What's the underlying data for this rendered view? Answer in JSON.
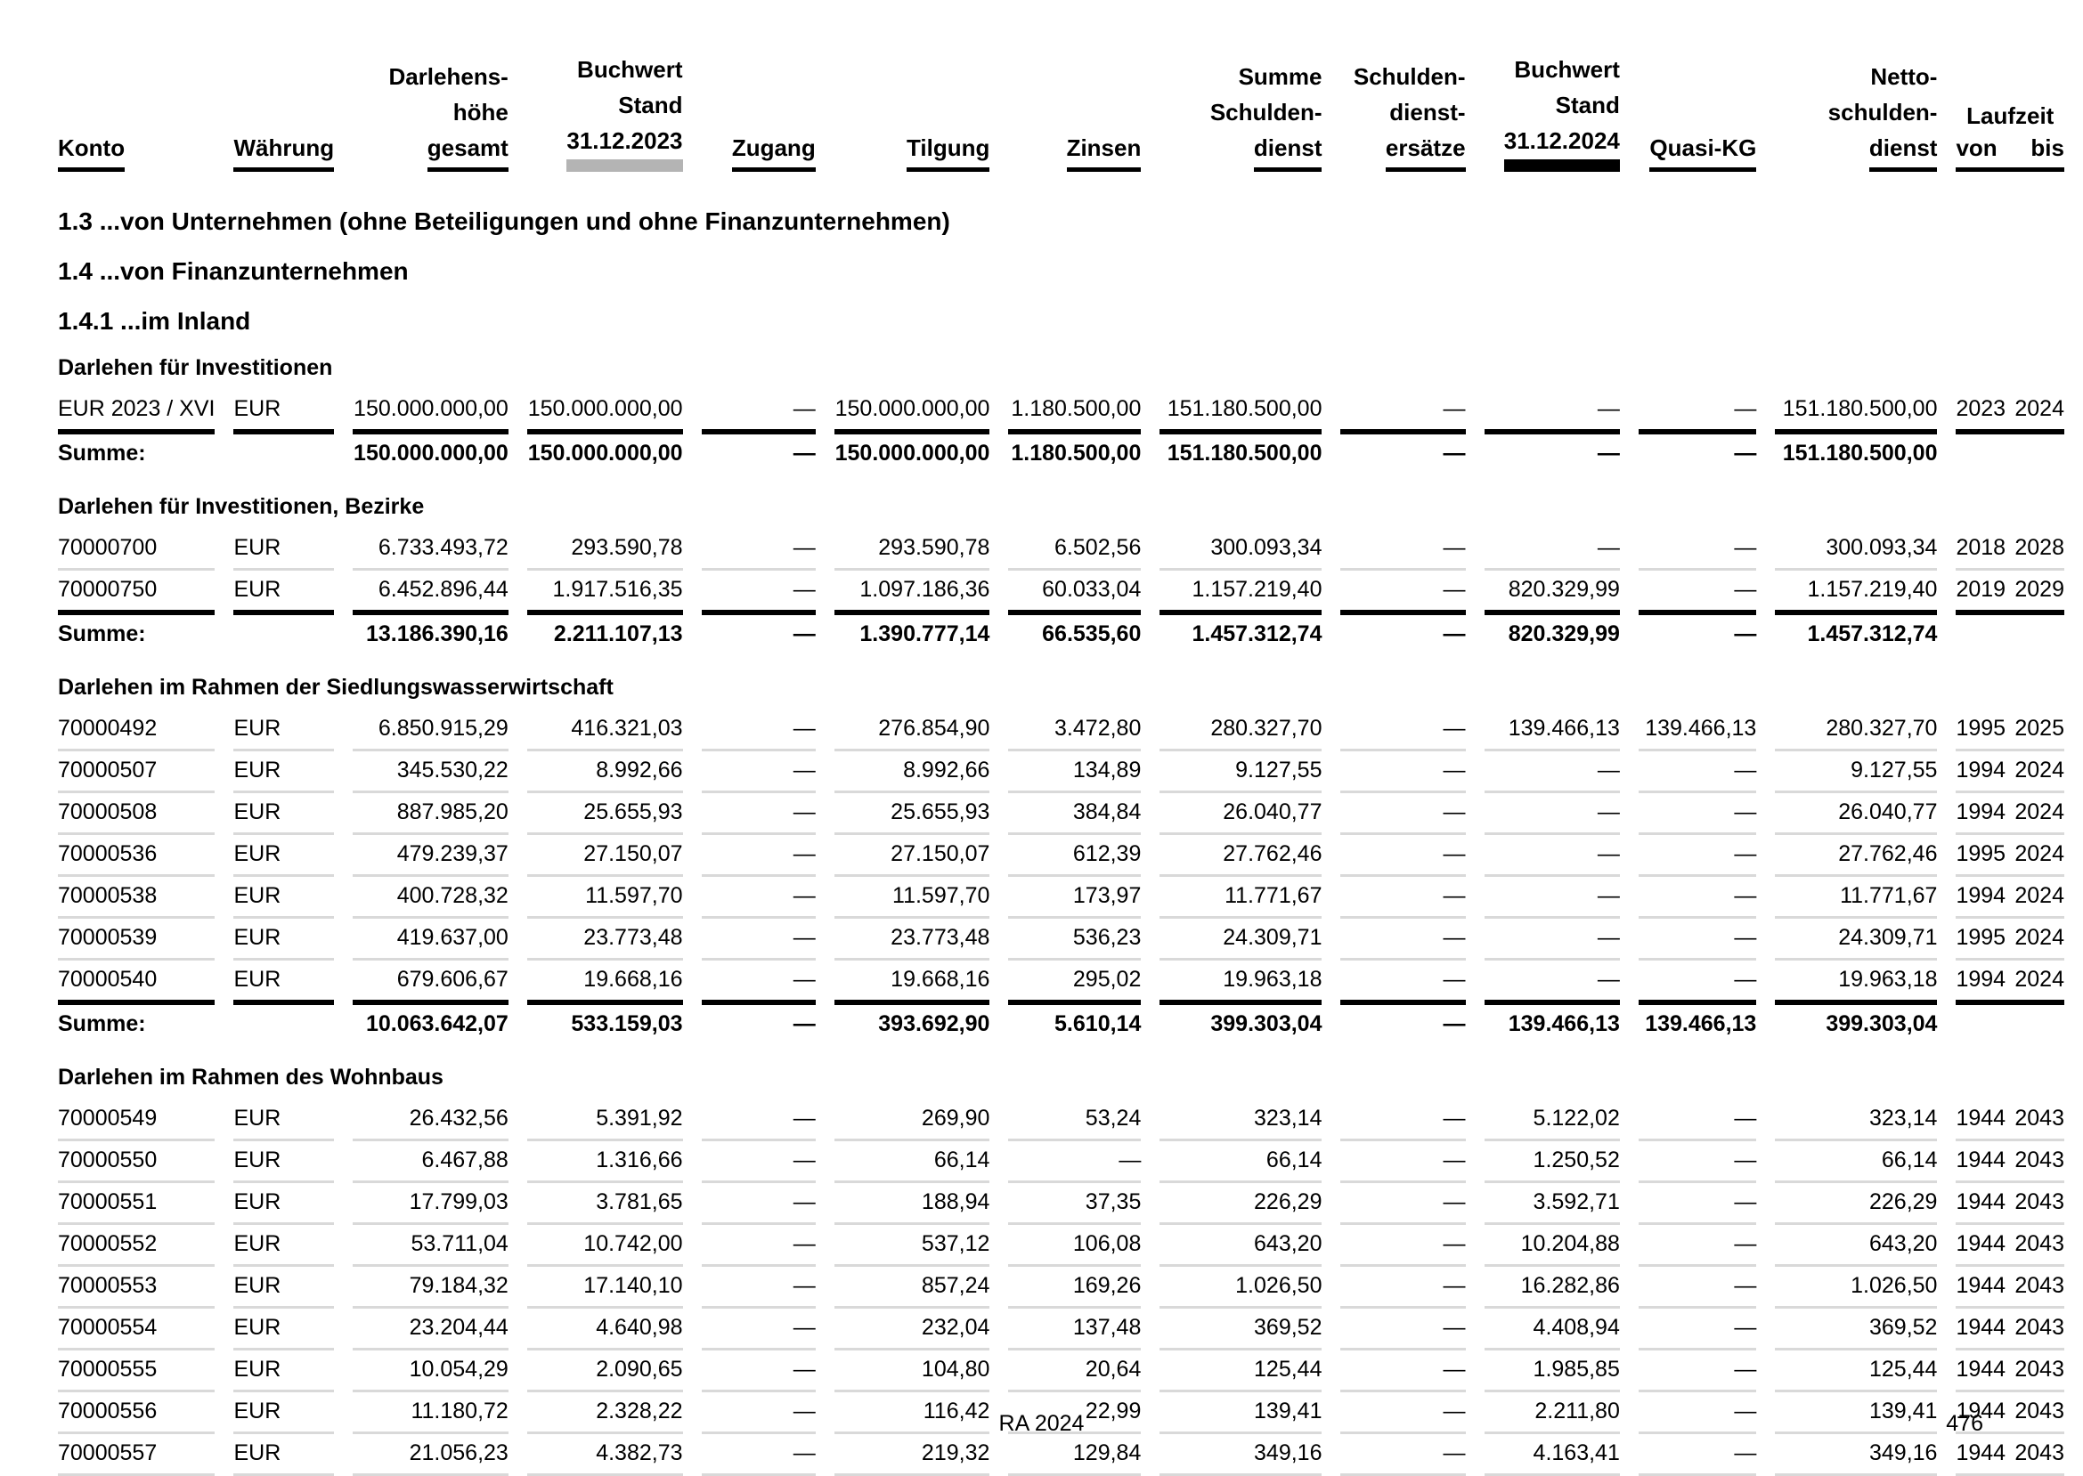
{
  "table": {
    "columns": [
      {
        "id": "konto",
        "label": "Konto",
        "align": "left",
        "underline": "black"
      },
      {
        "id": "waehrung",
        "label": "Währung",
        "align": "left",
        "underline": "black"
      },
      {
        "id": "darlehenshoehe-gesamt",
        "label": "Darlehens-\nhöhe\ngesamt",
        "align": "right",
        "underline": "black"
      },
      {
        "id": "buchwert-stand-2023",
        "label": "Buchwert\nStand\n31.12.2023",
        "align": "right",
        "underline": "gray-bar"
      },
      {
        "id": "zugang",
        "label": "Zugang",
        "align": "right",
        "underline": "black"
      },
      {
        "id": "tilgung",
        "label": "Tilgung",
        "align": "right",
        "underline": "black"
      },
      {
        "id": "zinsen",
        "label": "Zinsen",
        "align": "right",
        "underline": "black"
      },
      {
        "id": "summe-schuldendienst",
        "label": "Summe\nSchulden-\ndienst",
        "align": "right",
        "underline": "black"
      },
      {
        "id": "schuldendienstersaetze",
        "label": "Schulden-\ndienst-\nersätze",
        "align": "right",
        "underline": "black"
      },
      {
        "id": "buchwert-stand-2024",
        "label": "Buchwert\nStand\n31.12.2024",
        "align": "right",
        "underline": "black-bar"
      },
      {
        "id": "quasi-kg",
        "label": "Quasi-KG",
        "align": "right",
        "underline": "black"
      },
      {
        "id": "netto-schuldendienst",
        "label": "Netto-\nschulden-\ndienst",
        "align": "right",
        "underline": "black"
      },
      {
        "id": "laufzeit",
        "label": "Laufzeit",
        "sub": [
          "von",
          "bis"
        ],
        "align": "right",
        "underline": "black"
      }
    ]
  },
  "sections": {
    "headings": [
      "1.3 ...von Unternehmen (ohne Beteiligungen und ohne Finanzunternehmen)",
      "1.4 ...von Finanzunternehmen",
      "1.4.1 ...im Inland"
    ],
    "groups": [
      {
        "title": "Darlehen für Investitionen",
        "rows": [
          [
            "EUR 2023 / XVI",
            "EUR",
            "150.000.000,00",
            "150.000.000,00",
            "—",
            "150.000.000,00",
            "1.180.500,00",
            "151.180.500,00",
            "—",
            "—",
            "—",
            "151.180.500,00",
            "2023",
            "2024"
          ]
        ],
        "sum": [
          "Summe:",
          "",
          "150.000.000,00",
          "150.000.000,00",
          "—",
          "150.000.000,00",
          "1.180.500,00",
          "151.180.500,00",
          "—",
          "—",
          "—",
          "151.180.500,00",
          "",
          ""
        ]
      },
      {
        "title": "Darlehen für Investitionen, Bezirke",
        "rows": [
          [
            "70000700",
            "EUR",
            "6.733.493,72",
            "293.590,78",
            "—",
            "293.590,78",
            "6.502,56",
            "300.093,34",
            "—",
            "—",
            "—",
            "300.093,34",
            "2018",
            "2028"
          ],
          [
            "70000750",
            "EUR",
            "6.452.896,44",
            "1.917.516,35",
            "—",
            "1.097.186,36",
            "60.033,04",
            "1.157.219,40",
            "—",
            "820.329,99",
            "—",
            "1.157.219,40",
            "2019",
            "2029"
          ]
        ],
        "sum": [
          "Summe:",
          "",
          "13.186.390,16",
          "2.211.107,13",
          "—",
          "1.390.777,14",
          "66.535,60",
          "1.457.312,74",
          "—",
          "820.329,99",
          "—",
          "1.457.312,74",
          "",
          ""
        ]
      },
      {
        "title": "Darlehen im Rahmen der Siedlungswasserwirtschaft",
        "rows": [
          [
            "70000492",
            "EUR",
            "6.850.915,29",
            "416.321,03",
            "—",
            "276.854,90",
            "3.472,80",
            "280.327,70",
            "—",
            "139.466,13",
            "139.466,13",
            "280.327,70",
            "1995",
            "2025"
          ],
          [
            "70000507",
            "EUR",
            "345.530,22",
            "8.992,66",
            "—",
            "8.992,66",
            "134,89",
            "9.127,55",
            "—",
            "—",
            "—",
            "9.127,55",
            "1994",
            "2024"
          ],
          [
            "70000508",
            "EUR",
            "887.985,20",
            "25.655,93",
            "—",
            "25.655,93",
            "384,84",
            "26.040,77",
            "—",
            "—",
            "—",
            "26.040,77",
            "1994",
            "2024"
          ],
          [
            "70000536",
            "EUR",
            "479.239,37",
            "27.150,07",
            "—",
            "27.150,07",
            "612,39",
            "27.762,46",
            "—",
            "—",
            "—",
            "27.762,46",
            "1995",
            "2024"
          ],
          [
            "70000538",
            "EUR",
            "400.728,32",
            "11.597,70",
            "—",
            "11.597,70",
            "173,97",
            "11.771,67",
            "—",
            "—",
            "—",
            "11.771,67",
            "1994",
            "2024"
          ],
          [
            "70000539",
            "EUR",
            "419.637,00",
            "23.773,48",
            "—",
            "23.773,48",
            "536,23",
            "24.309,71",
            "—",
            "—",
            "—",
            "24.309,71",
            "1995",
            "2024"
          ],
          [
            "70000540",
            "EUR",
            "679.606,67",
            "19.668,16",
            "—",
            "19.668,16",
            "295,02",
            "19.963,18",
            "—",
            "—",
            "—",
            "19.963,18",
            "1994",
            "2024"
          ]
        ],
        "sum": [
          "Summe:",
          "",
          "10.063.642,07",
          "533.159,03",
          "—",
          "393.692,90",
          "5.610,14",
          "399.303,04",
          "—",
          "139.466,13",
          "139.466,13",
          "399.303,04",
          "",
          ""
        ]
      },
      {
        "title": "Darlehen im Rahmen des Wohnbaus",
        "rows": [
          [
            "70000549",
            "EUR",
            "26.432,56",
            "5.391,92",
            "—",
            "269,90",
            "53,24",
            "323,14",
            "—",
            "5.122,02",
            "—",
            "323,14",
            "1944",
            "2043"
          ],
          [
            "70000550",
            "EUR",
            "6.467,88",
            "1.316,66",
            "—",
            "66,14",
            "—",
            "66,14",
            "—",
            "1.250,52",
            "—",
            "66,14",
            "1944",
            "2043"
          ],
          [
            "70000551",
            "EUR",
            "17.799,03",
            "3.781,65",
            "—",
            "188,94",
            "37,35",
            "226,29",
            "—",
            "3.592,71",
            "—",
            "226,29",
            "1944",
            "2043"
          ],
          [
            "70000552",
            "EUR",
            "53.711,04",
            "10.742,00",
            "—",
            "537,12",
            "106,08",
            "643,20",
            "—",
            "10.204,88",
            "—",
            "643,20",
            "1944",
            "2043"
          ],
          [
            "70000553",
            "EUR",
            "79.184,32",
            "17.140,10",
            "—",
            "857,24",
            "169,26",
            "1.026,50",
            "—",
            "16.282,86",
            "—",
            "1.026,50",
            "1944",
            "2043"
          ],
          [
            "70000554",
            "EUR",
            "23.204,44",
            "4.640,98",
            "—",
            "232,04",
            "137,48",
            "369,52",
            "—",
            "4.408,94",
            "—",
            "369,52",
            "1944",
            "2043"
          ],
          [
            "70000555",
            "EUR",
            "10.054,29",
            "2.090,65",
            "—",
            "104,80",
            "20,64",
            "125,44",
            "—",
            "1.985,85",
            "—",
            "125,44",
            "1944",
            "2043"
          ],
          [
            "70000556",
            "EUR",
            "11.180,72",
            "2.328,22",
            "—",
            "116,42",
            "22,99",
            "139,41",
            "—",
            "2.211,80",
            "—",
            "139,41",
            "1944",
            "2043"
          ],
          [
            "70000557",
            "EUR",
            "21.056,23",
            "4.382,73",
            "—",
            "219,32",
            "129,84",
            "349,16",
            "—",
            "4.163,41",
            "—",
            "349,16",
            "1944",
            "2043"
          ]
        ],
        "sum": null
      }
    ]
  },
  "footer": {
    "document_label": "RA 2024",
    "page_number": "476"
  }
}
